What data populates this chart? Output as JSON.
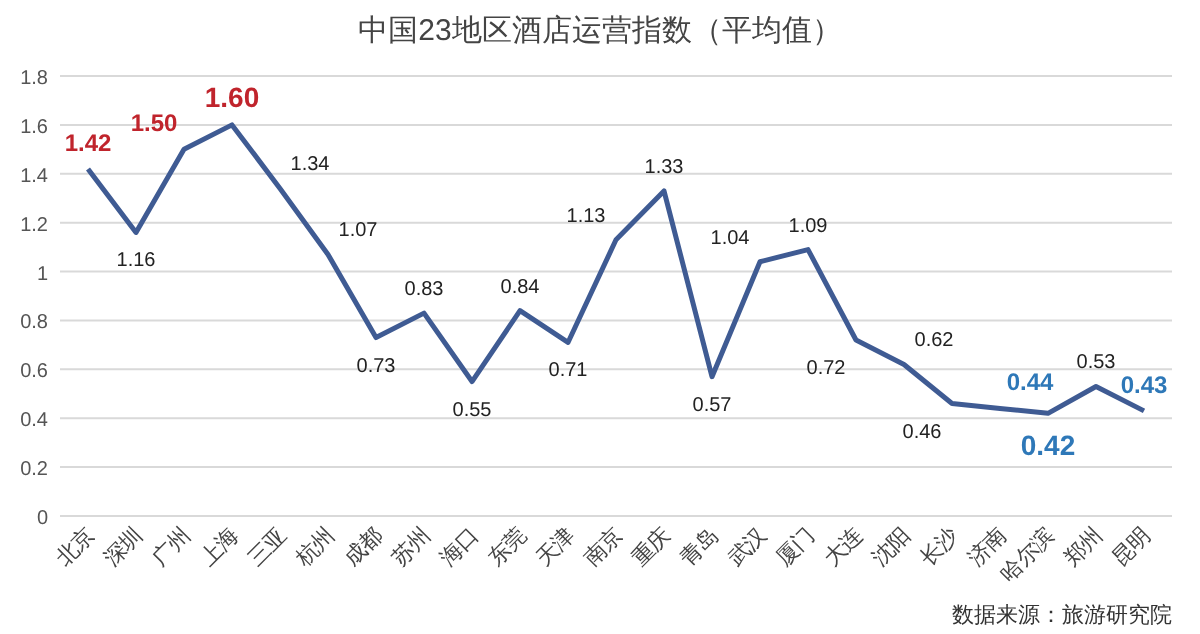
{
  "chart_data": {
    "type": "line",
    "title": "中国23地区酒店运营指数（平均值）",
    "categories": [
      "北京",
      "深圳",
      "广州",
      "上海",
      "三亚",
      "杭州",
      "成都",
      "苏州",
      "海口",
      "东莞",
      "天津",
      "南京",
      "重庆",
      "青岛",
      "武汉",
      "厦门",
      "大连",
      "沈阳",
      "长沙",
      "济南",
      "哈尔滨",
      "郑州",
      "昆明"
    ],
    "series": [
      {
        "color": "#3f5b93",
        "values": [
          1.42,
          1.16,
          1.5,
          1.6,
          1.34,
          1.07,
          0.73,
          0.83,
          0.55,
          0.84,
          0.71,
          1.13,
          1.33,
          0.57,
          1.04,
          1.09,
          0.72,
          0.62,
          0.46,
          0.44,
          0.42,
          0.53,
          0.43
        ],
        "value_labels": [
          "1.42",
          "1.16",
          "1.50",
          "1.60",
          "1.34",
          "1.07",
          "0.73",
          "0.83",
          "0.55",
          "0.84",
          "0.71",
          "1.13",
          "1.33",
          "0.57",
          "1.04",
          "1.09",
          "0.72",
          "0.62",
          "0.46",
          "0.44",
          "0.42",
          "0.53",
          "0.43"
        ]
      }
    ],
    "ylim": [
      0,
      1.8
    ],
    "yticks": [
      0,
      0.2,
      0.4,
      0.6,
      0.8,
      1,
      1.2,
      1.4,
      1.6,
      1.8
    ],
    "grid": "y",
    "marker": "none",
    "line_style": "solid",
    "annotations": [
      "数据来源：旅游研究院"
    ]
  }
}
